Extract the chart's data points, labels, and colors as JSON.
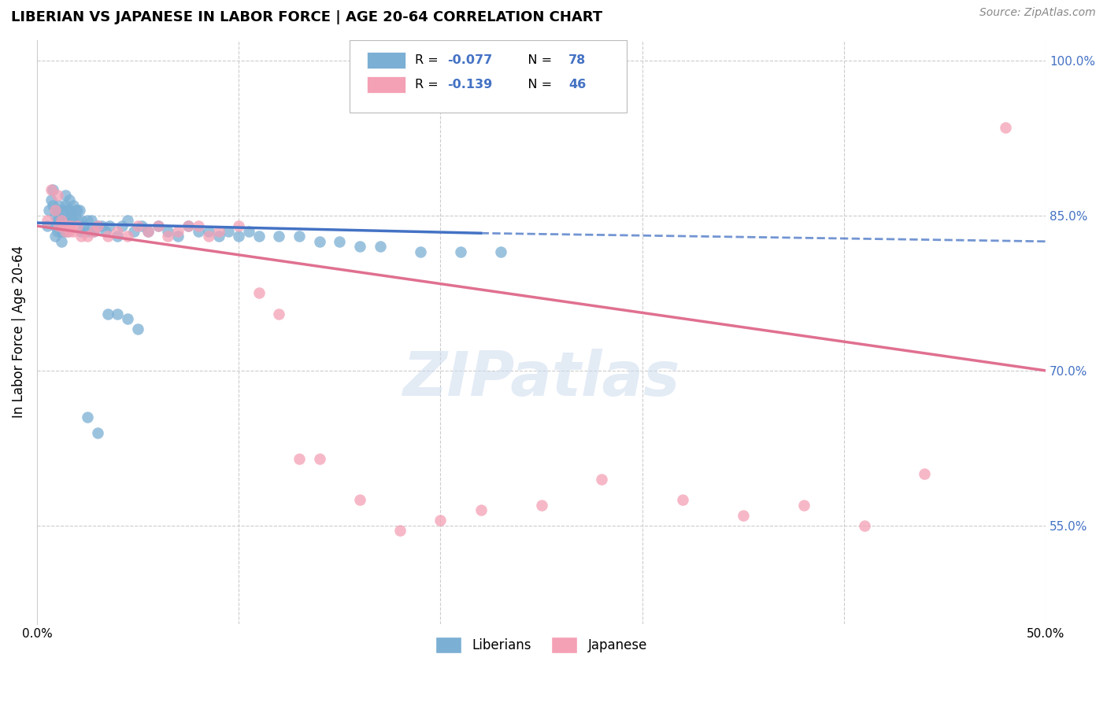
{
  "title": "LIBERIAN VS JAPANESE IN LABOR FORCE | AGE 20-64 CORRELATION CHART",
  "source": "Source: ZipAtlas.com",
  "ylabel": "In Labor Force | Age 20-64",
  "xlim": [
    0.0,
    0.5
  ],
  "ylim": [
    0.455,
    1.02
  ],
  "blue_R": -0.077,
  "blue_N": 78,
  "pink_R": -0.139,
  "pink_N": 46,
  "background_color": "#ffffff",
  "grid_color": "#cccccc",
  "blue_color": "#7bafd4",
  "pink_color": "#f4a0b5",
  "blue_line_color": "#4472c4",
  "pink_line_color": "#e07090",
  "watermark": "ZIPatlas",
  "blue_scatter_x": [
    0.005,
    0.006,
    0.007,
    0.008,
    0.008,
    0.009,
    0.009,
    0.009,
    0.01,
    0.01,
    0.01,
    0.011,
    0.011,
    0.012,
    0.012,
    0.012,
    0.013,
    0.013,
    0.013,
    0.014,
    0.014,
    0.015,
    0.015,
    0.015,
    0.016,
    0.016,
    0.017,
    0.017,
    0.018,
    0.018,
    0.019,
    0.02,
    0.02,
    0.021,
    0.022,
    0.022,
    0.023,
    0.024,
    0.025,
    0.026,
    0.027,
    0.028,
    0.03,
    0.032,
    0.034,
    0.036,
    0.04,
    0.042,
    0.045,
    0.048,
    0.052,
    0.055,
    0.06,
    0.065,
    0.07,
    0.075,
    0.08,
    0.085,
    0.09,
    0.095,
    0.1,
    0.105,
    0.11,
    0.12,
    0.13,
    0.14,
    0.15,
    0.16,
    0.17,
    0.19,
    0.21,
    0.23,
    0.025,
    0.03,
    0.035,
    0.04,
    0.045,
    0.05
  ],
  "blue_scatter_y": [
    0.84,
    0.855,
    0.865,
    0.875,
    0.86,
    0.85,
    0.84,
    0.83,
    0.855,
    0.845,
    0.835,
    0.86,
    0.85,
    0.84,
    0.835,
    0.825,
    0.855,
    0.845,
    0.835,
    0.87,
    0.86,
    0.855,
    0.845,
    0.835,
    0.865,
    0.855,
    0.85,
    0.845,
    0.86,
    0.845,
    0.855,
    0.855,
    0.845,
    0.855,
    0.845,
    0.835,
    0.84,
    0.835,
    0.845,
    0.835,
    0.845,
    0.835,
    0.84,
    0.84,
    0.835,
    0.84,
    0.83,
    0.84,
    0.845,
    0.835,
    0.84,
    0.835,
    0.84,
    0.835,
    0.83,
    0.84,
    0.835,
    0.835,
    0.83,
    0.835,
    0.83,
    0.835,
    0.83,
    0.83,
    0.83,
    0.825,
    0.825,
    0.82,
    0.82,
    0.815,
    0.815,
    0.815,
    0.655,
    0.64,
    0.755,
    0.755,
    0.75,
    0.74
  ],
  "pink_scatter_x": [
    0.005,
    0.007,
    0.009,
    0.01,
    0.011,
    0.012,
    0.013,
    0.014,
    0.015,
    0.016,
    0.017,
    0.018,
    0.02,
    0.022,
    0.025,
    0.028,
    0.03,
    0.035,
    0.04,
    0.045,
    0.05,
    0.055,
    0.06,
    0.065,
    0.07,
    0.075,
    0.08,
    0.085,
    0.09,
    0.1,
    0.11,
    0.12,
    0.13,
    0.14,
    0.16,
    0.18,
    0.2,
    0.22,
    0.25,
    0.28,
    0.32,
    0.35,
    0.38,
    0.41,
    0.44,
    0.48
  ],
  "pink_scatter_y": [
    0.845,
    0.875,
    0.855,
    0.87,
    0.84,
    0.845,
    0.84,
    0.835,
    0.84,
    0.835,
    0.84,
    0.835,
    0.84,
    0.83,
    0.83,
    0.835,
    0.84,
    0.83,
    0.835,
    0.83,
    0.84,
    0.835,
    0.84,
    0.83,
    0.835,
    0.84,
    0.84,
    0.83,
    0.835,
    0.84,
    0.775,
    0.755,
    0.615,
    0.615,
    0.575,
    0.545,
    0.555,
    0.565,
    0.57,
    0.595,
    0.575,
    0.56,
    0.57,
    0.55,
    0.6,
    0.935
  ]
}
